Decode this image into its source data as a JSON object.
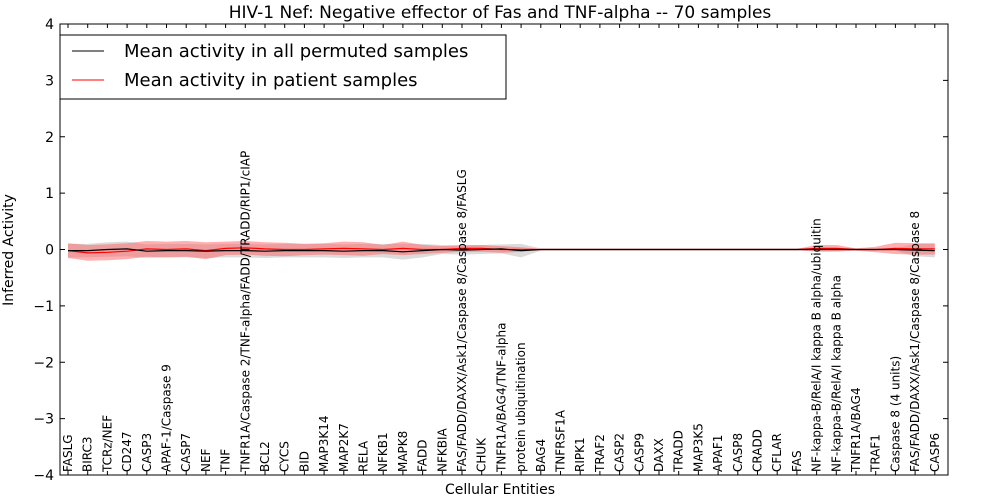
{
  "chart_data": {
    "type": "line",
    "title": "HIV-1 Nef: Negative effector of Fas and TNF-alpha -- 70 samples",
    "xlabel": "Cellular Entities",
    "ylabel": "Inferred Activity",
    "ylim": [
      -4,
      4
    ],
    "yticks": [
      "−4",
      "−3",
      "−2",
      "−1",
      "0",
      "1",
      "2",
      "3",
      "4"
    ],
    "legend": {
      "position": "top-left",
      "entries": [
        {
          "label": "Mean activity in all permuted samples",
          "color": "#000000"
        },
        {
          "label": "Mean activity in patient samples",
          "color": "#ff0000"
        }
      ]
    },
    "categories": [
      "FASLG",
      "BIRC3",
      "TCRz/NEF",
      "CD247",
      "CASP3",
      "APAF-1/Caspase 9",
      "CASP7",
      "NEF",
      "TNF",
      "TNFR1A/Caspase 2/TNF-alpha/FADD/TRADD/RIP1/cIAP",
      "BCL2",
      "CYCS",
      "BID",
      "MAP3K14",
      "MAP2K7",
      "RELA",
      "NFKB1",
      "MAPK8",
      "FADD",
      "NFKBIA",
      "FAS/FADD/DAXX/Ask1/Caspase 8/Caspase 8/FASLG",
      "CHUK",
      "TNFR1A/BAG4/TNF-alpha",
      "protein ubiquitination",
      "BAG4",
      "TNFRSF1A",
      "RIPK1",
      "TRAF2",
      "CASP2",
      "CASP9",
      "DAXX",
      "TRADD",
      "MAP3K5",
      "APAF1",
      "CASP8",
      "CRADD",
      "CFLAR",
      "FAS",
      "NF-kappa-B/RelA/I kappa B alpha/ubiquitin",
      "NF-kappa-B/RelA/I kappa B alpha",
      "TNFR1A/BAG4",
      "TRAF1",
      "Caspase 8 (4 units)",
      "FAS/FADD/DAXX/Ask1/Caspase 8/Caspase 8",
      "CASP6"
    ],
    "series": [
      {
        "name": "Mean activity in all permuted samples",
        "color": "#000000",
        "values": [
          -0.02,
          -0.02,
          0.0,
          0.01,
          -0.03,
          -0.02,
          -0.02,
          -0.03,
          -0.02,
          -0.02,
          -0.03,
          -0.02,
          -0.02,
          -0.02,
          -0.03,
          -0.02,
          -0.02,
          -0.04,
          -0.02,
          0.0,
          -0.01,
          0.0,
          0.01,
          -0.02,
          0.0,
          0.0,
          0.0,
          0.0,
          0.0,
          0.0,
          0.0,
          0.0,
          0.0,
          0.0,
          0.0,
          0.0,
          0.0,
          0.0,
          0.0,
          0.0,
          0.0,
          0.0,
          0.0,
          -0.01,
          -0.02
        ],
        "band": [
          0.12,
          0.12,
          0.13,
          0.13,
          0.12,
          0.12,
          0.12,
          0.12,
          0.12,
          0.12,
          0.12,
          0.12,
          0.12,
          0.12,
          0.12,
          0.12,
          0.12,
          0.14,
          0.12,
          0.08,
          0.08,
          0.08,
          0.08,
          0.12,
          0.02,
          0.02,
          0.02,
          0.02,
          0.02,
          0.02,
          0.02,
          0.02,
          0.02,
          0.02,
          0.02,
          0.02,
          0.02,
          0.02,
          0.02,
          0.02,
          0.02,
          0.02,
          0.02,
          0.11,
          0.12
        ]
      },
      {
        "name": "Mean activity in patient samples",
        "color": "#ff0000",
        "values": [
          -0.02,
          -0.06,
          -0.05,
          -0.03,
          0.01,
          0.0,
          0.01,
          -0.02,
          0.02,
          0.03,
          0.01,
          0.0,
          0.0,
          0.01,
          0.02,
          0.01,
          0.0,
          0.02,
          0.0,
          0.0,
          0.02,
          0.02,
          0.0,
          0.0,
          0.0,
          0.0,
          0.0,
          0.0,
          0.0,
          0.0,
          0.0,
          0.0,
          0.0,
          0.0,
          0.0,
          0.0,
          0.0,
          0.0,
          0.02,
          0.02,
          0.0,
          0.0,
          0.02,
          0.01,
          0.01
        ],
        "band": [
          0.13,
          0.14,
          0.14,
          0.14,
          0.14,
          0.14,
          0.14,
          0.15,
          0.12,
          0.12,
          0.12,
          0.12,
          0.1,
          0.1,
          0.12,
          0.12,
          0.08,
          0.12,
          0.08,
          0.06,
          0.06,
          0.06,
          0.06,
          0.04,
          0.01,
          0.01,
          0.01,
          0.01,
          0.01,
          0.01,
          0.01,
          0.01,
          0.01,
          0.01,
          0.01,
          0.01,
          0.01,
          0.01,
          0.06,
          0.06,
          0.02,
          0.05,
          0.1,
          0.1,
          0.1
        ]
      }
    ]
  }
}
